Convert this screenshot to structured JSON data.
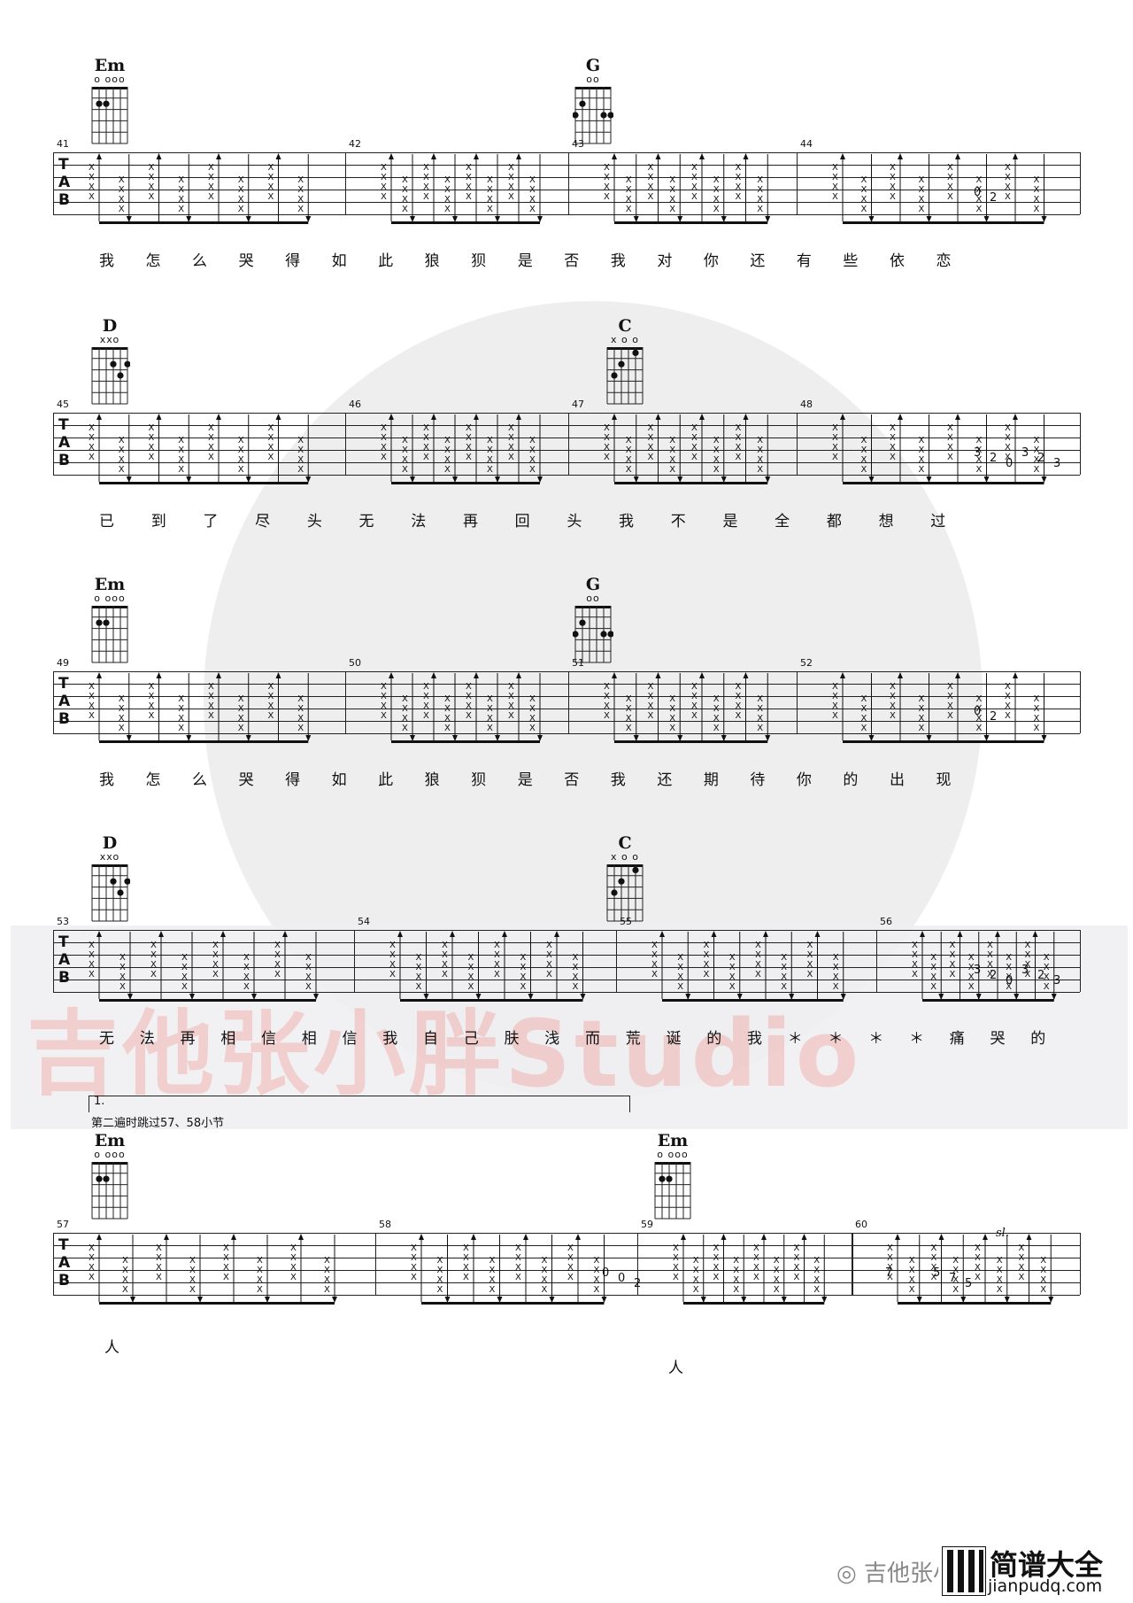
{
  "watermark": {
    "text": "吉他张小胖Studio"
  },
  "chord_symbols": {
    "Em": {
      "name": "Em",
      "opens": "o ooo"
    },
    "G": {
      "name": "G",
      "opens": "oo"
    },
    "D": {
      "name": "D",
      "opens": "xxo"
    },
    "C": {
      "name": "C",
      "opens": "x  o o"
    }
  },
  "tab_clef": "TAB",
  "systems": [
    {
      "measures": [
        "41",
        "42",
        "43",
        "44"
      ],
      "lyrics": [
        "我",
        "怎",
        "么",
        "哭",
        "得",
        "如",
        "此",
        "狼",
        "狈",
        "是",
        "否",
        "我",
        "对",
        "你",
        "还",
        "有",
        "些",
        "依",
        "恋"
      ],
      "fret_notes": [
        "0",
        "2"
      ]
    },
    {
      "measures": [
        "45",
        "46",
        "47",
        "48"
      ],
      "lyrics": [
        "已",
        "到",
        "了",
        "尽",
        "头",
        "无",
        "法",
        "再",
        "回",
        "头",
        "我",
        "不",
        "是",
        "全",
        "都",
        "想",
        "过"
      ],
      "fret_notes": [
        "3",
        "2",
        "0",
        "3",
        "2",
        "3"
      ]
    },
    {
      "measures": [
        "49",
        "50",
        "51",
        "52"
      ],
      "lyrics": [
        "我",
        "怎",
        "么",
        "哭",
        "得",
        "如",
        "此",
        "狼",
        "狈",
        "是",
        "否",
        "我",
        "还",
        "期",
        "待",
        "你",
        "的",
        "出",
        "现"
      ],
      "fret_notes": [
        "0",
        "2"
      ]
    },
    {
      "measures": [
        "53",
        "54",
        "55",
        "56"
      ],
      "lyrics": [
        "无",
        "法",
        "再",
        "相",
        "信",
        "相",
        "信",
        "我",
        "自",
        "己",
        "肤",
        "浅",
        "而",
        "荒",
        "诞",
        "的",
        "我",
        "＊",
        "＊",
        "＊",
        "＊",
        "痛",
        "哭",
        "的"
      ],
      "fret_notes": [
        "3",
        "2",
        "0",
        "3",
        "2",
        "3"
      ]
    },
    {
      "measures": [
        "57",
        "58",
        "59",
        "60"
      ],
      "lyrics": [
        "人",
        "人"
      ],
      "fret_notes": [
        "0",
        "0",
        "2",
        "5",
        "7",
        "5",
        "7"
      ]
    }
  ],
  "volta": {
    "label": "1.",
    "note": "第二遍时跳过57、58小节"
  },
  "slide_mark": "sl.",
  "footer": {
    "wechat": "吉他张小胖",
    "brand_title": "简谱大全",
    "brand_url": "jianpudq.com"
  }
}
